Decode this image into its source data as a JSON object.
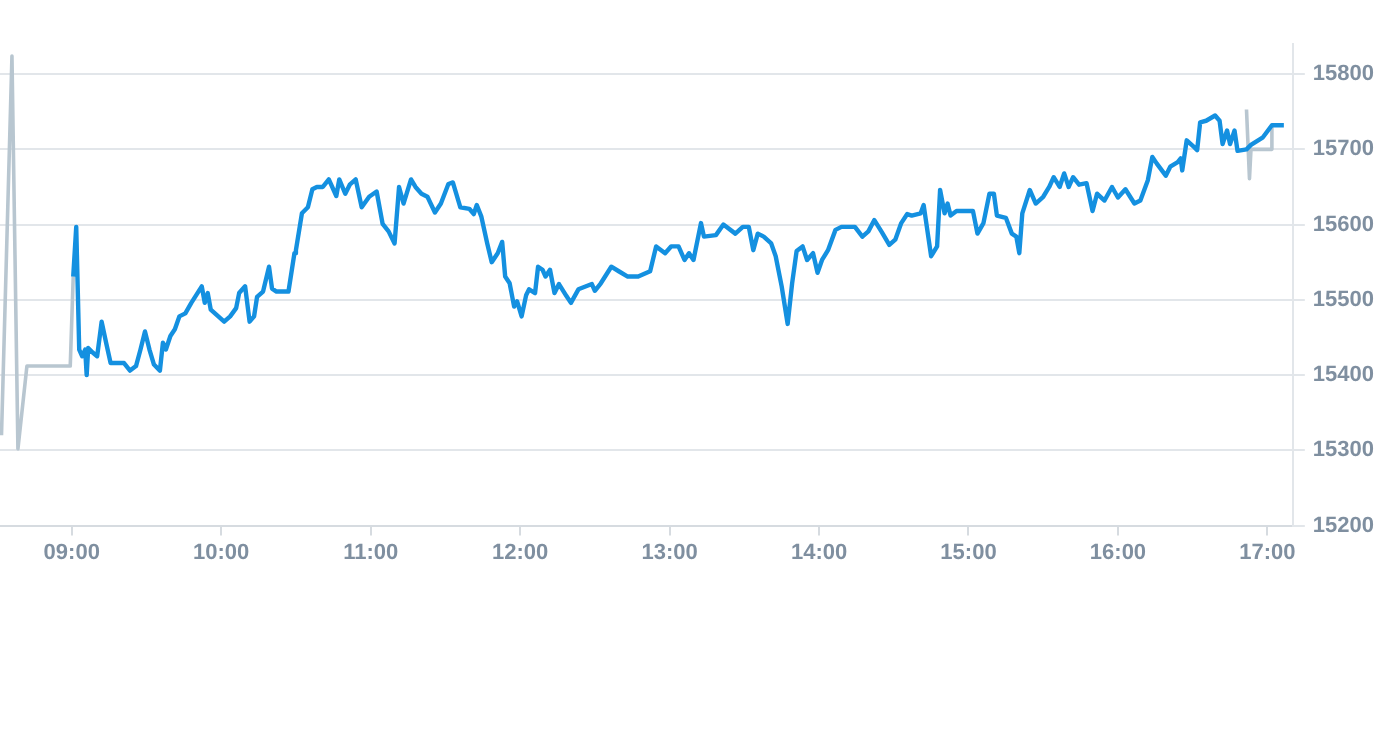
{
  "chart_data": {
    "type": "line",
    "xlim": [
      8.52,
      17.17
    ],
    "ylim": [
      15200,
      15840
    ],
    "xticks": [
      {
        "value": 9,
        "label": "09:00"
      },
      {
        "value": 10,
        "label": "10:00"
      },
      {
        "value": 11,
        "label": "11:00"
      },
      {
        "value": 12,
        "label": "12:00"
      },
      {
        "value": 13,
        "label": "13:00"
      },
      {
        "value": 14,
        "label": "14:00"
      },
      {
        "value": 15,
        "label": "15:00"
      },
      {
        "value": 16,
        "label": "16:00"
      },
      {
        "value": 17,
        "label": "17:00"
      }
    ],
    "yticks": [
      15200,
      15300,
      15400,
      15500,
      15600,
      15700,
      15800
    ],
    "grid": "y",
    "legend": false,
    "series": [
      {
        "color": "#b8c6d0",
        "x": [
          8.53,
          8.6,
          8.64,
          8.7,
          8.99,
          9.01
        ],
        "values": [
          15320,
          15824,
          15302,
          15412,
          15412,
          15531
        ]
      },
      {
        "color": "#b8c6d0",
        "x": [
          16.86,
          16.88,
          16.89,
          17.02,
          17.03
        ],
        "values": [
          15753,
          15661,
          15700,
          15700,
          15732
        ]
      },
      {
        "color": "#1490e0",
        "x": [
          9.01,
          9.03,
          9.05,
          9.07,
          9.09,
          9.1,
          9.11,
          9.14,
          9.17,
          9.2,
          9.23,
          9.26,
          9.35,
          9.39,
          9.43,
          9.46,
          9.49,
          9.52,
          9.55,
          9.59,
          9.61,
          9.63,
          9.66,
          9.69,
          9.72,
          9.76,
          9.8,
          9.87,
          9.89,
          9.91,
          9.93,
          10.02,
          10.06,
          10.1,
          10.12,
          10.16,
          10.19,
          10.22,
          10.24,
          10.28,
          10.32,
          10.34,
          10.37,
          10.45,
          10.49,
          10.5,
          10.54,
          10.58,
          10.61,
          10.64,
          10.68,
          10.72,
          10.77,
          10.79,
          10.83,
          10.86,
          10.9,
          10.94,
          10.99,
          11.04,
          11.08,
          11.12,
          11.16,
          11.19,
          11.22,
          11.27,
          11.3,
          11.34,
          11.38,
          11.43,
          11.47,
          11.52,
          11.55,
          11.6,
          11.66,
          11.69,
          11.71,
          11.74,
          11.78,
          11.81,
          11.85,
          11.88,
          11.9,
          11.93,
          11.96,
          11.98,
          12.01,
          12.04,
          12.06,
          12.1,
          12.12,
          12.15,
          12.17,
          12.2,
          12.23,
          12.26,
          12.31,
          12.34,
          12.39,
          12.48,
          12.5,
          12.54,
          12.61,
          12.66,
          12.72,
          12.79,
          12.87,
          12.91,
          12.97,
          13.01,
          13.06,
          13.1,
          13.13,
          13.16,
          13.21,
          13.23,
          13.31,
          13.36,
          13.44,
          13.49,
          13.53,
          13.56,
          13.59,
          13.63,
          13.68,
          13.71,
          13.75,
          13.79,
          13.82,
          13.85,
          13.89,
          13.92,
          13.96,
          13.99,
          14.02,
          14.06,
          14.11,
          14.15,
          14.24,
          14.29,
          14.33,
          14.37,
          14.42,
          14.47,
          14.51,
          14.55,
          14.59,
          14.62,
          14.68,
          14.7,
          14.75,
          14.79,
          14.81,
          14.84,
          14.86,
          14.88,
          14.92,
          15.03,
          15.06,
          15.1,
          15.14,
          15.17,
          15.19,
          15.25,
          15.29,
          15.32,
          15.34,
          15.36,
          15.41,
          15.45,
          15.5,
          15.54,
          15.57,
          15.61,
          15.64,
          15.67,
          15.7,
          15.74,
          15.79,
          15.83,
          15.86,
          15.91,
          15.96,
          16.0,
          16.05,
          16.11,
          16.15,
          16.2,
          16.23,
          16.26,
          16.32,
          16.35,
          16.4,
          16.42,
          16.43,
          16.46,
          16.51,
          16.53,
          16.55,
          16.59,
          16.65,
          16.68,
          16.7,
          16.73,
          16.75,
          16.78,
          16.8,
          16.86,
          16.89,
          16.97,
          17.03,
          17.11
        ],
        "values": [
          15531,
          15597,
          15434,
          15425,
          15434,
          15400,
          15436,
          15430,
          15425,
          15471,
          15443,
          15416,
          15416,
          15406,
          15412,
          15434,
          15458,
          15434,
          15414,
          15406,
          15443,
          15434,
          15452,
          15461,
          15478,
          15482,
          15496,
          15518,
          15496,
          15509,
          15487,
          15471,
          15478,
          15489,
          15509,
          15518,
          15471,
          15478,
          15504,
          15511,
          15544,
          15515,
          15511,
          15511,
          15562,
          15566,
          15615,
          15623,
          15647,
          15650,
          15650,
          15660,
          15638,
          15660,
          15641,
          15653,
          15660,
          15623,
          15637,
          15644,
          15601,
          15591,
          15575,
          15650,
          15628,
          15660,
          15650,
          15641,
          15637,
          15616,
          15628,
          15654,
          15656,
          15623,
          15621,
          15614,
          15626,
          15611,
          15575,
          15550,
          15562,
          15577,
          15531,
          15522,
          15491,
          15498,
          15478,
          15506,
          15514,
          15509,
          15544,
          15540,
          15531,
          15540,
          15509,
          15521,
          15505,
          15496,
          15514,
          15521,
          15512,
          15522,
          15544,
          15538,
          15531,
          15531,
          15538,
          15571,
          15562,
          15571,
          15571,
          15553,
          15562,
          15553,
          15602,
          15584,
          15586,
          15600,
          15588,
          15597,
          15597,
          15566,
          15588,
          15584,
          15575,
          15558,
          15518,
          15468,
          15522,
          15565,
          15571,
          15553,
          15562,
          15536,
          15553,
          15566,
          15593,
          15597,
          15597,
          15584,
          15591,
          15606,
          15590,
          15573,
          15580,
          15602,
          15614,
          15612,
          15615,
          15626,
          15558,
          15571,
          15646,
          15615,
          15628,
          15612,
          15618,
          15618,
          15588,
          15602,
          15641,
          15641,
          15612,
          15609,
          15588,
          15584,
          15562,
          15615,
          15646,
          15628,
          15637,
          15650,
          15663,
          15650,
          15668,
          15650,
          15663,
          15653,
          15655,
          15618,
          15641,
          15632,
          15650,
          15636,
          15647,
          15628,
          15632,
          15659,
          15690,
          15681,
          15665,
          15677,
          15683,
          15688,
          15672,
          15712,
          15703,
          15699,
          15736,
          15738,
          15745,
          15738,
          15707,
          15725,
          15707,
          15725,
          15698,
          15700,
          15706,
          15716,
          15732,
          15732
        ]
      }
    ]
  }
}
